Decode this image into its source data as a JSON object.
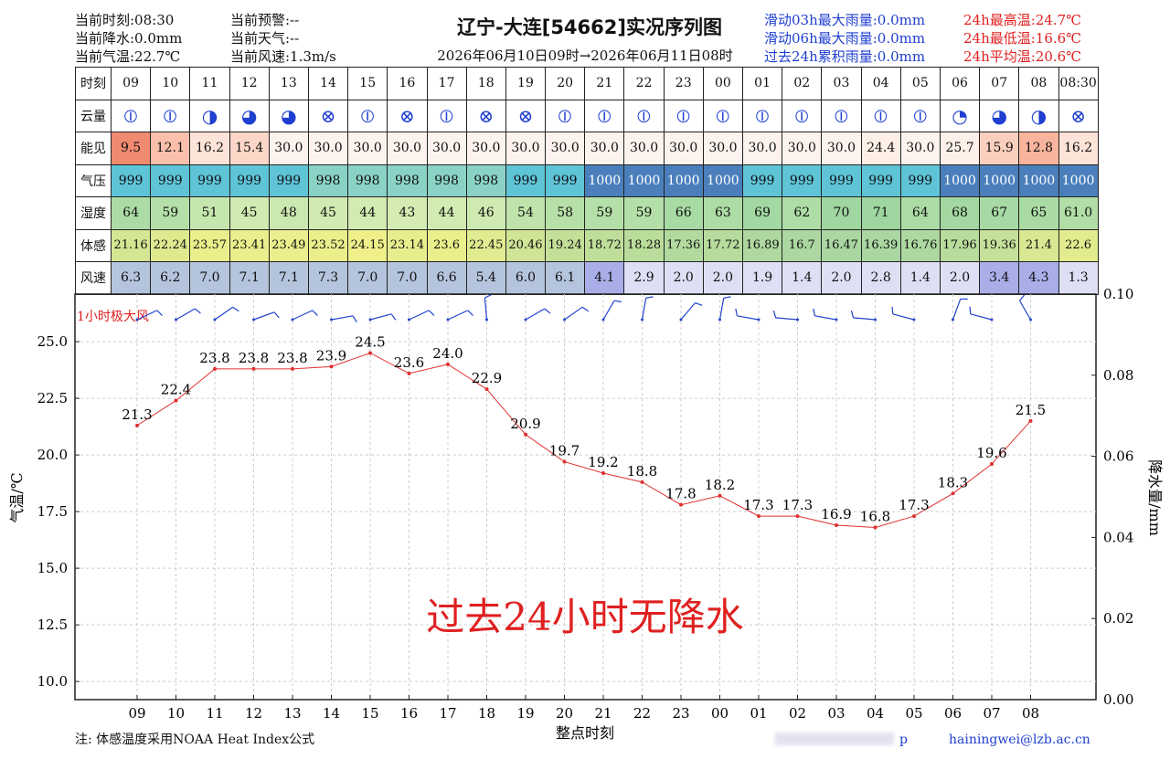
{
  "header": {
    "left": [
      "当前时刻:08:30",
      "当前降水:0.0mm",
      "当前气温:22.7℃"
    ],
    "mid": [
      "当前预警:--",
      "当前天气:--",
      "当前风速:1.3m/s"
    ],
    "title": "辽宁-大连[54662]实况序列图",
    "subtitle": "2026年06月10日09时→2026年06月11日08时",
    "rain": [
      "滑动03h最大雨量:0.0mm",
      "滑动06h最大雨量:0.0mm",
      "过去24h累积雨量:0.0mm"
    ],
    "temps": [
      "24h最高温:24.7℃",
      "24h最低温:16.6℃",
      "24h平均温:20.6℃"
    ]
  },
  "table": {
    "row_labels": [
      "时刻",
      "云量",
      "能见",
      "气压",
      "湿度",
      "体感",
      "风速"
    ],
    "times": [
      "09",
      "10",
      "11",
      "12",
      "13",
      "14",
      "15",
      "16",
      "17",
      "18",
      "19",
      "20",
      "21",
      "22",
      "23",
      "00",
      "01",
      "02",
      "03",
      "04",
      "05",
      "06",
      "07",
      "08",
      "08:30"
    ],
    "cloud": [
      "⦶",
      "⦶",
      "◑",
      "◕",
      "◕",
      "⊗",
      "⦶",
      "⊗",
      "⦶",
      "⊗",
      "⊗",
      "⦶",
      "⦶",
      "⦶",
      "⦶",
      "⦶",
      "⦶",
      "⦶",
      "⦶",
      "⦶",
      "⦶",
      "◔",
      "◕",
      "◑",
      "⊗"
    ],
    "visibility": [
      "9.5",
      "12.1",
      "16.2",
      "15.4",
      "30.0",
      "30.0",
      "30.0",
      "30.0",
      "30.0",
      "30.0",
      "30.0",
      "30.0",
      "30.0",
      "30.0",
      "30.0",
      "30.0",
      "30.0",
      "30.0",
      "30.0",
      "24.4",
      "30.0",
      "25.7",
      "15.9",
      "12.8",
      "16.2"
    ],
    "pressure": [
      "999",
      "999",
      "999",
      "999",
      "999",
      "998",
      "998",
      "998",
      "998",
      "998",
      "999",
      "999",
      "1000",
      "1000",
      "1000",
      "1000",
      "999",
      "999",
      "999",
      "999",
      "999",
      "1000",
      "1000",
      "1000",
      "1000"
    ],
    "humidity": [
      "64",
      "59",
      "51",
      "45",
      "48",
      "45",
      "44",
      "43",
      "44",
      "46",
      "54",
      "58",
      "59",
      "59",
      "66",
      "63",
      "69",
      "62",
      "70",
      "71",
      "64",
      "68",
      "67",
      "65",
      "61.0"
    ],
    "feels": [
      "21.16",
      "22.24",
      "23.57",
      "23.41",
      "23.49",
      "23.52",
      "24.15",
      "23.14",
      "23.6",
      "22.45",
      "20.46",
      "19.24",
      "18.72",
      "18.28",
      "17.36",
      "17.72",
      "16.89",
      "16.7",
      "16.47",
      "16.39",
      "16.76",
      "17.96",
      "19.36",
      "21.4",
      "22.6"
    ],
    "wind": [
      "6.3",
      "6.2",
      "7.0",
      "7.1",
      "7.1",
      "7.3",
      "7.0",
      "7.0",
      "6.6",
      "5.4",
      "6.0",
      "6.1",
      "4.1",
      "2.9",
      "2.0",
      "2.0",
      "1.9",
      "1.4",
      "2.0",
      "2.8",
      "1.4",
      "2.0",
      "3.4",
      "4.3",
      "1.3"
    ],
    "colors": {
      "visibility": [
        "#f08a70",
        "#fbc0ac",
        "#fde3d8",
        "#fcd7c8",
        "#fdf3ee",
        "#fdf3ee",
        "#fdf3ee",
        "#fdf3ee",
        "#fdf3ee",
        "#fdf3ee",
        "#fdf3ee",
        "#fdf3ee",
        "#fdf3ee",
        "#fdf3ee",
        "#fdf3ee",
        "#fdf3ee",
        "#fdf3ee",
        "#fdf3ee",
        "#fdf3ee",
        "#fdeee6",
        "#fdf3ee",
        "#fdf0e9",
        "#fbcfbd",
        "#f9b49e",
        "#fde3d8"
      ],
      "pressure": {
        "999": "#5ec4d6",
        "998": "#8ad2c6",
        "1000": "#4a7fbc"
      },
      "humidity": {
        "low": "#d4ecb2",
        "high": "#9ed6a0"
      },
      "feels": {
        "low": "#a6d5a2",
        "high": "#eff08a"
      },
      "wind": {
        "strong": "#b4c4dc",
        "mid": "#a9aee8",
        "low": "#dedff4"
      }
    }
  },
  "chart_data": {
    "type": "line",
    "x": [
      "09",
      "10",
      "11",
      "12",
      "13",
      "14",
      "15",
      "16",
      "17",
      "18",
      "19",
      "20",
      "21",
      "22",
      "23",
      "00",
      "01",
      "02",
      "03",
      "04",
      "05",
      "06",
      "07",
      "08"
    ],
    "series": [
      {
        "values": [
          21.3,
          22.4,
          23.8,
          23.8,
          23.8,
          23.9,
          24.5,
          23.6,
          24.0,
          22.9,
          20.9,
          19.7,
          19.2,
          18.8,
          17.8,
          18.2,
          17.3,
          17.3,
          16.9,
          16.8,
          17.3,
          18.3,
          19.6,
          21.5
        ]
      }
    ],
    "xlabel": "整点时刻",
    "ylabel": "气温/℃",
    "y2label": "降水量/mm",
    "ylim": [
      9.2,
      27.1
    ],
    "y2lim": [
      0.0,
      0.1
    ],
    "yticks": [
      "10.0",
      "12.5",
      "15.0",
      "17.5",
      "20.0",
      "22.5",
      "25.0"
    ],
    "y2ticks": [
      "0.00",
      "0.02",
      "0.04",
      "0.06",
      "0.08",
      "0.10"
    ],
    "no_rain_text": "过去24小时无降水",
    "gust_label": "1小时极大风",
    "grid": true,
    "line_color": "#e03030",
    "wind_barb_color": "#2244cc"
  },
  "footer": {
    "note": "注: 体感温度采用NOAA Heat Index公式",
    "email": "hainingwei@lzb.ac.cn",
    "p": "p"
  }
}
